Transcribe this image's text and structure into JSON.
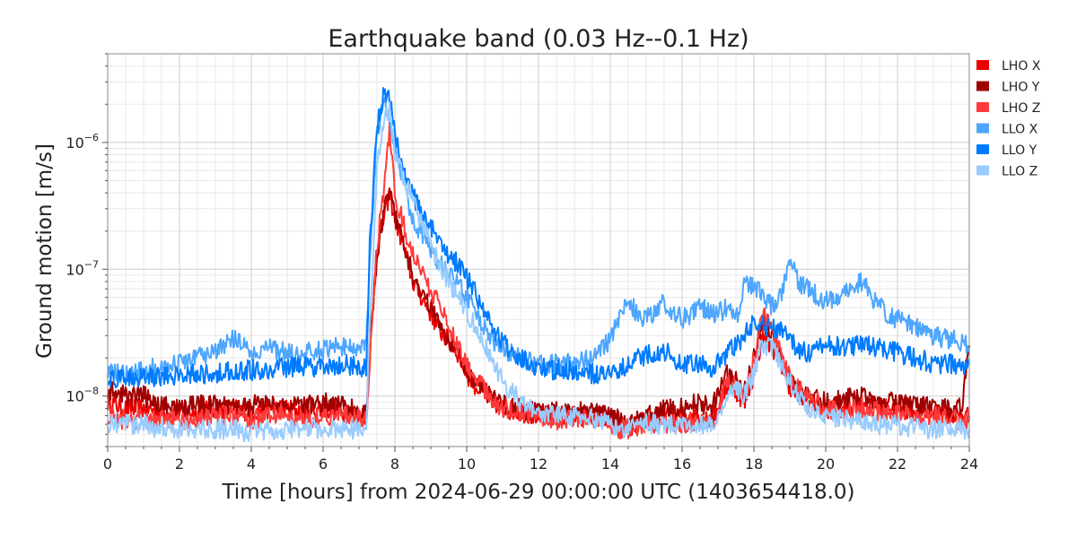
{
  "chart_data": {
    "type": "line",
    "title": "Earthquake band (0.03 Hz--0.1 Hz)",
    "xlabel": "Time [hours] from 2024-06-29 00:00:00 UTC (1403654418.0)",
    "ylabel": "Ground motion [m/s]",
    "xlim": [
      0,
      24
    ],
    "ylim": [
      4e-09,
      5e-06
    ],
    "yscale": "log",
    "grid": true,
    "legend_position": "outside-top-right",
    "x_ticks": [
      "0",
      "2",
      "4",
      "6",
      "8",
      "10",
      "12",
      "14",
      "16",
      "18",
      "20",
      "22",
      "24"
    ],
    "y_ticks": [
      {
        "mantissa": "10",
        "exp": "−8"
      },
      {
        "mantissa": "10",
        "exp": "−7"
      },
      {
        "mantissa": "10",
        "exp": "−6"
      }
    ],
    "x": [
      0,
      0.5,
      1,
      1.5,
      2,
      2.5,
      3,
      3.5,
      4,
      4.5,
      5,
      5.5,
      6,
      6.5,
      7,
      7.2,
      7.3,
      7.5,
      7.7,
      7.85,
      8,
      8.25,
      8.5,
      8.75,
      9,
      9.25,
      9.5,
      9.75,
      10,
      10.25,
      10.5,
      10.75,
      11,
      11.5,
      12,
      12.5,
      13,
      13.5,
      14,
      14.25,
      14.5,
      14.75,
      15,
      15.5,
      16,
      16.5,
      16.8,
      17,
      17.25,
      17.5,
      17.75,
      18,
      18.25,
      18.5,
      18.75,
      19,
      19.25,
      19.5,
      20,
      20.5,
      21,
      21.5,
      22,
      22.5,
      23,
      23.5,
      23.8,
      24
    ],
    "series": [
      {
        "name": "LHO X",
        "color": "#ee0000",
        "values": [
          9e-09,
          8e-09,
          8e-09,
          7.5e-09,
          7.5e-09,
          7.5e-09,
          8e-09,
          8e-09,
          7.5e-09,
          8e-09,
          8e-09,
          7.5e-09,
          8e-09,
          7.5e-09,
          7e-09,
          7e-09,
          2e-08,
          1.4e-07,
          2.6e-07,
          4e-07,
          2.5e-07,
          1.5e-07,
          8e-08,
          6e-08,
          4.5e-08,
          3.3e-08,
          2.7e-08,
          2.2e-08,
          1.5e-08,
          1.2e-08,
          1.05e-08,
          9e-09,
          8e-09,
          7.5e-09,
          7e-09,
          7e-09,
          7e-09,
          7e-09,
          6.5e-09,
          6e-09,
          5.5e-09,
          6e-09,
          6.5e-09,
          7e-09,
          7e-09,
          7e-09,
          6.5e-09,
          8e-09,
          1.2e-08,
          1.1e-08,
          9e-09,
          1.5e-08,
          3e-08,
          2.5e-08,
          1.8e-08,
          1.2e-08,
          1e-08,
          9e-09,
          8e-09,
          8e-09,
          9e-09,
          8e-09,
          8e-09,
          7.5e-09,
          7.5e-09,
          7e-09,
          7e-09,
          7e-09
        ]
      },
      {
        "name": "LHO Y",
        "color": "#a00000",
        "values": [
          1.1e-08,
          1e-08,
          1e-08,
          8.5e-09,
          8e-09,
          8.5e-09,
          8.5e-09,
          8e-09,
          8.5e-09,
          8.5e-09,
          8e-09,
          8.5e-09,
          9e-09,
          8.5e-09,
          7.5e-09,
          7e-09,
          2.5e-08,
          1.2e-07,
          3e-07,
          4.5e-07,
          2.8e-07,
          1.6e-07,
          9e-08,
          6.5e-08,
          5e-08,
          3.6e-08,
          2.8e-08,
          2.3e-08,
          1.6e-08,
          1.3e-08,
          1.1e-08,
          9.5e-09,
          8.5e-09,
          8e-09,
          7.5e-09,
          7.5e-09,
          7.5e-09,
          7.5e-09,
          7e-09,
          6.5e-09,
          6e-09,
          6.5e-09,
          7e-09,
          8e-09,
          8e-09,
          9e-09,
          8e-09,
          1e-08,
          1.5e-08,
          1.3e-08,
          1.1e-08,
          2e-08,
          4e-08,
          3e-08,
          2e-08,
          1.4e-08,
          1.1e-08,
          1e-08,
          9e-09,
          9.5e-09,
          1e-08,
          9e-09,
          9e-09,
          8.5e-09,
          8e-09,
          8e-09,
          8e-09,
          2.5e-08
        ]
      },
      {
        "name": "LHO Z",
        "color": "#ff3a3a",
        "values": [
          7e-09,
          6.5e-09,
          6.5e-09,
          6.5e-09,
          6.5e-09,
          6.5e-09,
          7e-09,
          7e-09,
          6.5e-09,
          7e-09,
          7e-09,
          6.5e-09,
          7e-09,
          7e-09,
          6.5e-09,
          6.5e-09,
          2e-08,
          1.5e-07,
          4.5e-07,
          1.2e-06,
          4e-07,
          2.2e-07,
          1.3e-07,
          9e-08,
          7e-08,
          5e-08,
          3.5e-08,
          2.6e-08,
          1.8e-08,
          1.4e-08,
          1.1e-08,
          9e-09,
          8e-09,
          7.5e-09,
          7e-09,
          6.5e-09,
          6.5e-09,
          6.5e-09,
          6e-09,
          5.5e-09,
          5.5e-09,
          5.5e-09,
          6e-09,
          6e-09,
          6e-09,
          6.5e-09,
          6e-09,
          7.5e-09,
          1.3e-08,
          1.2e-08,
          1e-08,
          2e-08,
          4.5e-08,
          3.5e-08,
          2.2e-08,
          1.5e-08,
          1.2e-08,
          1e-08,
          8e-09,
          7.5e-09,
          8e-09,
          7.5e-09,
          7.5e-09,
          7e-09,
          7e-09,
          6.5e-09,
          6.5e-09,
          6.5e-09
        ]
      },
      {
        "name": "LLO X",
        "color": "#4da6ff",
        "values": [
          1.5e-08,
          1.5e-08,
          1.6e-08,
          1.7e-08,
          1.8e-08,
          2e-08,
          2.2e-08,
          2.8e-08,
          2.2e-08,
          2.4e-08,
          2.2e-08,
          2.2e-08,
          2.3e-08,
          2.5e-08,
          2.4e-08,
          2.5e-08,
          1.2e-07,
          1.2e-06,
          2.2e-06,
          1.6e-06,
          9e-07,
          4.5e-07,
          2.5e-07,
          1.8e-07,
          1.4e-07,
          1.1e-07,
          9e-08,
          7.5e-08,
          6e-08,
          4.5e-08,
          3.5e-08,
          2.7e-08,
          2.3e-08,
          2e-08,
          1.8e-08,
          1.8e-08,
          1.8e-08,
          2e-08,
          2.8e-08,
          4e-08,
          5.5e-08,
          4.5e-08,
          4e-08,
          5.5e-08,
          4e-08,
          5e-08,
          4.5e-08,
          4.5e-08,
          5e-08,
          4e-08,
          8e-08,
          7e-08,
          6.5e-08,
          5e-08,
          6e-08,
          1.2e-07,
          8e-08,
          7e-08,
          5.5e-08,
          6.5e-08,
          8e-08,
          5e-08,
          4e-08,
          3.5e-08,
          3e-08,
          2.8e-08,
          2.6e-08,
          2.4e-08
        ]
      },
      {
        "name": "LLO Y",
        "color": "#007bff",
        "values": [
          1.3e-08,
          1.4e-08,
          1.4e-08,
          1.4e-08,
          1.5e-08,
          1.5e-08,
          1.5e-08,
          1.6e-08,
          1.6e-08,
          1.6e-08,
          1.7e-08,
          1.7e-08,
          1.7e-08,
          1.8e-08,
          1.7e-08,
          1.7e-08,
          1.5e-07,
          1.3e-06,
          2.5e-06,
          2.2e-06,
          1.1e-06,
          6e-07,
          3.8e-07,
          2.7e-07,
          2.1e-07,
          1.7e-07,
          1.3e-07,
          1.1e-07,
          8.5e-08,
          6.5e-08,
          4.5e-08,
          3.3e-08,
          2.6e-08,
          2e-08,
          1.7e-08,
          1.6e-08,
          1.6e-08,
          1.5e-08,
          1.5e-08,
          1.6e-08,
          1.8e-08,
          2e-08,
          2.1e-08,
          2.3e-08,
          1.8e-08,
          1.8e-08,
          1.7e-08,
          1.8e-08,
          2.2e-08,
          2.5e-08,
          3e-08,
          3.8e-08,
          3.6e-08,
          3.5e-08,
          3.2e-08,
          2.8e-08,
          2.3e-08,
          2.2e-08,
          2.5e-08,
          2.4e-08,
          2.6e-08,
          2.4e-08,
          2.2e-08,
          2e-08,
          1.8e-08,
          1.8e-08,
          1.7e-08,
          1.8e-08
        ]
      },
      {
        "name": "LLO Z",
        "color": "#99ccff",
        "values": [
          6e-09,
          6e-09,
          6e-09,
          5.5e-09,
          5.5e-09,
          5.5e-09,
          5.5e-09,
          5.5e-09,
          5e-09,
          5.5e-09,
          5.5e-09,
          5.5e-09,
          5.5e-09,
          5.5e-09,
          5.5e-09,
          5.5e-09,
          4e-08,
          6e-07,
          1.5e-06,
          1.8e-06,
          9e-07,
          5e-07,
          3.5e-07,
          2.2e-07,
          1.6e-07,
          1.1e-07,
          8e-08,
          6e-08,
          4.5e-08,
          3.5e-08,
          2.5e-08,
          1.8e-08,
          1.3e-08,
          9e-09,
          7.5e-09,
          7e-09,
          7e-09,
          6.5e-09,
          6e-09,
          5.5e-09,
          5.5e-09,
          5.5e-09,
          6e-09,
          6e-09,
          6e-09,
          6e-09,
          6e-09,
          7e-09,
          1.1e-08,
          1.2e-08,
          1e-08,
          1.5e-08,
          2.6e-08,
          2.4e-08,
          1.8e-08,
          1.3e-08,
          1e-08,
          8e-09,
          7e-09,
          6.5e-09,
          6.5e-09,
          6e-09,
          6e-09,
          5.5e-09,
          5.5e-09,
          5.5e-09,
          5.5e-09,
          5.5e-09
        ]
      }
    ]
  }
}
